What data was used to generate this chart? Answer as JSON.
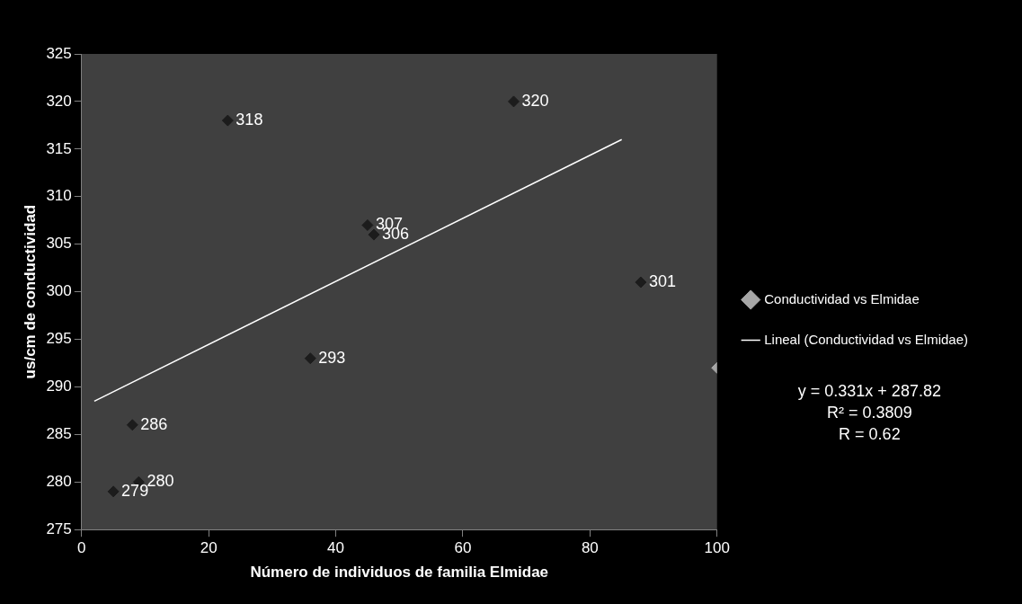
{
  "chart_data": {
    "type": "scatter",
    "xlabel": "Número de individuos de familia Elmidae",
    "ylabel": "us/cm de conductividad",
    "xlim": [
      0,
      100
    ],
    "xticks": [
      0,
      20,
      40,
      60,
      80,
      100
    ],
    "ylim": [
      275,
      325
    ],
    "yticks": [
      275,
      280,
      285,
      290,
      295,
      300,
      305,
      310,
      315,
      320,
      325
    ],
    "grid": false,
    "legend": "right",
    "annotations": [
      "y = 0.331x + 287.82",
      "R² = 0.3809",
      "R = 0.62"
    ],
    "series": [
      {
        "name": "Conductividad vs Elmidae",
        "type": "scatter",
        "marker": "diamond",
        "color": "#a6a6a6",
        "colors": [
          "#1c1c1c",
          "#1c1c1c",
          "#1c1c1c",
          "#1c1c1c",
          "#1c1c1c",
          "#1c1c1c",
          "#1c1c1c",
          "#1c1c1c",
          "#1c1c1c",
          "#a6a6a6"
        ],
        "x": [
          5,
          9,
          8,
          36,
          45,
          46,
          23,
          68,
          88,
          100
        ],
        "values": [
          279,
          280,
          286,
          293,
          307,
          306,
          318,
          320,
          301,
          292
        ],
        "value_labels": [
          "279",
          "280",
          "286",
          "293",
          "307",
          "306",
          "318",
          "320",
          "301",
          null
        ]
      },
      {
        "name": "Lineal (Conductividad vs Elmidae)",
        "type": "line",
        "marker": "none",
        "color": "#ffffff",
        "line_style": "solid",
        "x": [
          2,
          85
        ],
        "values": [
          288.5,
          316
        ]
      }
    ]
  }
}
